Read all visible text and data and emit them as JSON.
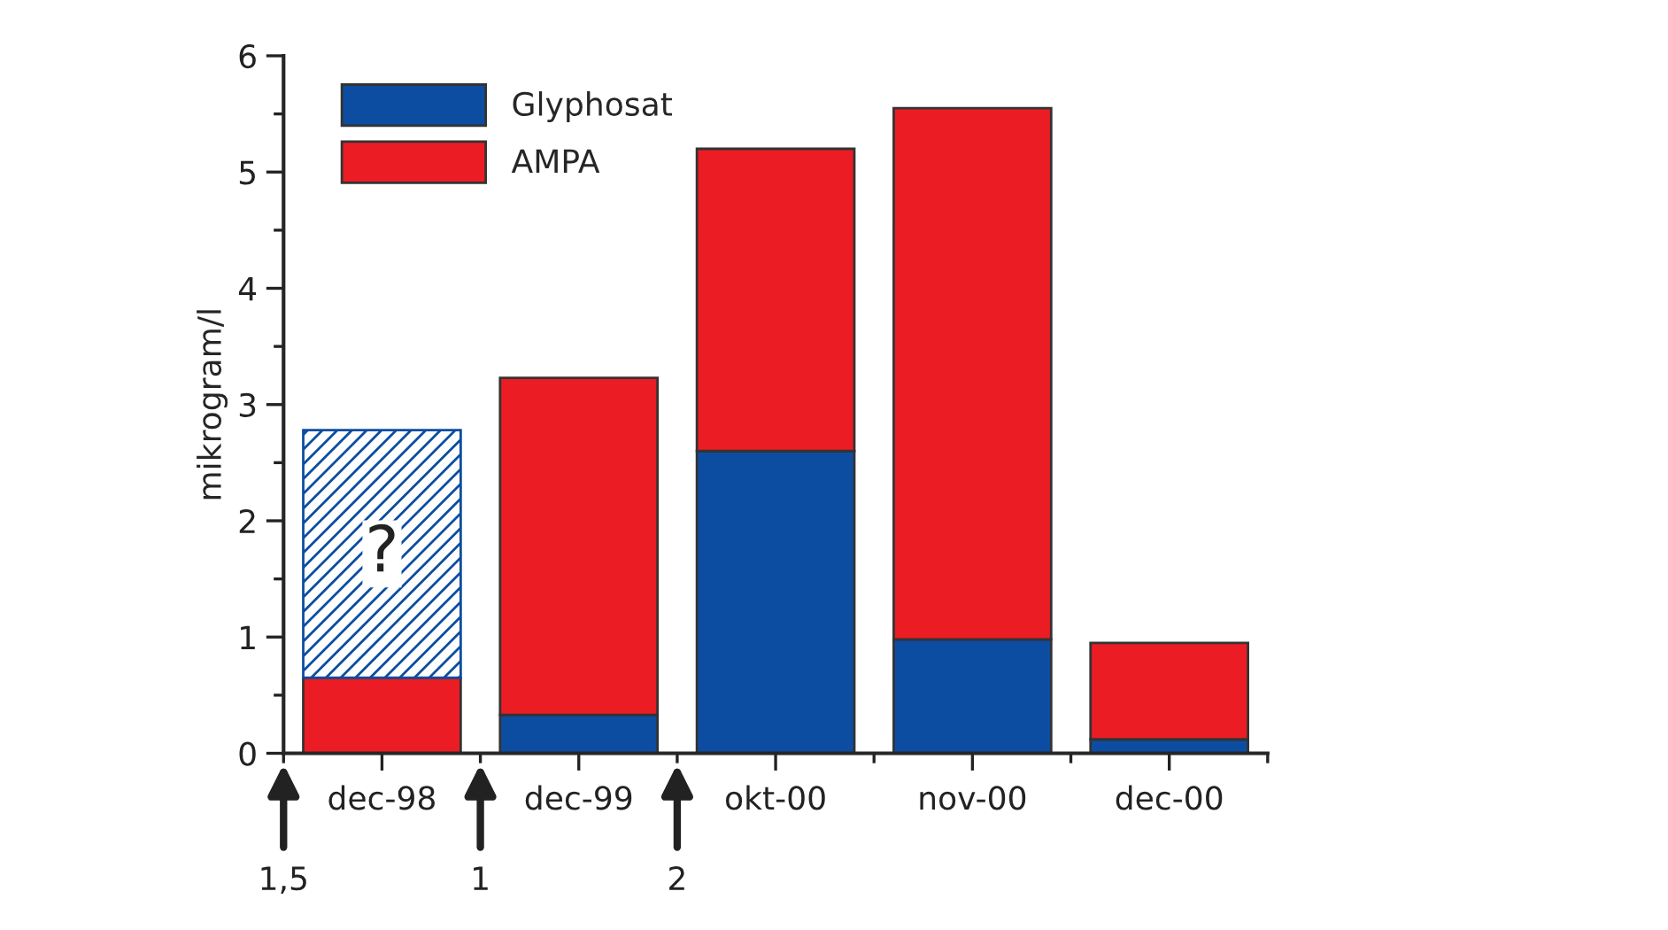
{
  "chart_data": {
    "type": "bar",
    "stacked": true,
    "ylabel": "mikrogram/l",
    "categories": [
      "dec-98",
      "dec-99",
      "okt-00",
      "nov-00",
      "dec-00"
    ],
    "series": [
      {
        "name": "Glyphosat",
        "color": "#0d4da1",
        "values": [
          null,
          0.33,
          2.6,
          0.98,
          0.12
        ]
      },
      {
        "name": "AMPA",
        "color": "#ec1c24",
        "values": [
          0.65,
          2.9,
          2.6,
          4.57,
          0.83
        ]
      },
      {
        "color": "#0d4da1",
        "values": [
          2.13,
          null,
          null,
          null,
          null
        ]
      }
    ],
    "ylim": [
      0,
      6
    ],
    "yticks": [
      0,
      1,
      2,
      3,
      4,
      5,
      6
    ],
    "grid": false,
    "legend": "top left",
    "annotations": [
      "?",
      "1,5",
      "1",
      "2"
    ]
  }
}
